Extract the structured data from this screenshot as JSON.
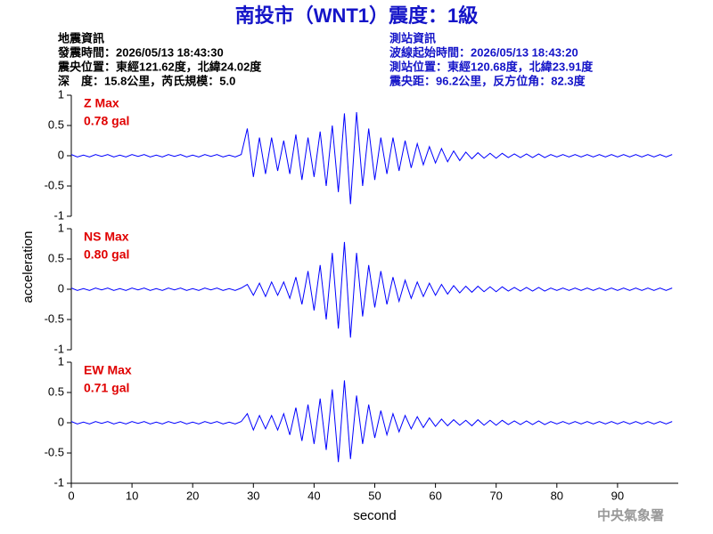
{
  "header": {
    "title": "南投市（WNT1）震度：1級",
    "left": [
      "地震資訊",
      "發震時間：2026/05/13 18:43:30",
      "震央位置：東經121.62度，北緯24.02度",
      "深　度：15.8公里，芮氏規模：5.0"
    ],
    "right": [
      "測站資訊",
      "波線起始時間：2026/05/13 18:43:20",
      "測站位置：東經120.68度，北緯23.91度",
      "震央距：96.2公里，反方位角：82.3度"
    ]
  },
  "footer": "中央氣象署",
  "chart_data": [
    {
      "type": "line",
      "annotations": [
        "Z Max",
        "0.78 gal"
      ],
      "xlim": [
        0,
        100
      ],
      "ylim": [
        -1,
        1
      ],
      "yticks": [
        1,
        0.5,
        0,
        -0.5,
        -1
      ],
      "series": [
        {
          "color": "#0000ff",
          "x": [
            0,
            1,
            2,
            3,
            4,
            5,
            6,
            7,
            8,
            9,
            10,
            11,
            12,
            13,
            14,
            15,
            16,
            17,
            18,
            19,
            20,
            21,
            22,
            23,
            24,
            25,
            26,
            27,
            28,
            29,
            30,
            31,
            32,
            33,
            34,
            35,
            36,
            37,
            38,
            39,
            40,
            41,
            42,
            43,
            44,
            45,
            46,
            47,
            48,
            49,
            50,
            51,
            52,
            53,
            54,
            55,
            56,
            57,
            58,
            59,
            60,
            61,
            62,
            63,
            64,
            65,
            66,
            67,
            68,
            69,
            70,
            71,
            72,
            73,
            74,
            75,
            76,
            77,
            78,
            79,
            80,
            81,
            82,
            83,
            84,
            85,
            86,
            87,
            88,
            89,
            90,
            91,
            92,
            93,
            94,
            95,
            96,
            97,
            98,
            99
          ],
          "values": [
            0.02,
            -0.02,
            0.01,
            -0.02,
            0.02,
            -0.01,
            0.02,
            -0.02,
            0.01,
            -0.02,
            0.02,
            -0.01,
            0.02,
            -0.02,
            0.01,
            -0.02,
            0.02,
            -0.01,
            0.02,
            -0.02,
            0.01,
            -0.02,
            0.02,
            -0.01,
            0.02,
            -0.02,
            0.01,
            -0.02,
            0.02,
            0.45,
            -0.35,
            0.3,
            -0.3,
            0.3,
            -0.25,
            0.25,
            -0.3,
            0.35,
            -0.4,
            0.3,
            -0.35,
            0.4,
            -0.5,
            0.5,
            -0.6,
            0.7,
            -0.8,
            0.72,
            -0.5,
            0.45,
            -0.4,
            0.3,
            -0.3,
            0.3,
            -0.25,
            0.25,
            -0.2,
            0.2,
            -0.15,
            0.15,
            -0.12,
            0.12,
            -0.1,
            0.08,
            -0.08,
            0.06,
            -0.05,
            0.05,
            -0.04,
            0.04,
            -0.04,
            0.04,
            -0.03,
            0.03,
            -0.03,
            0.03,
            -0.03,
            0.03,
            -0.03,
            0.02,
            -0.02,
            0.02,
            -0.02,
            0.02,
            -0.02,
            0.02,
            -0.02,
            0.02,
            -0.02,
            0.02,
            -0.02,
            0.02,
            -0.02,
            0.02,
            -0.02,
            0.02,
            -0.02,
            0.02,
            -0.02,
            0.02
          ]
        }
      ]
    },
    {
      "type": "line",
      "annotations": [
        "NS Max",
        "0.80 gal"
      ],
      "ylabel": "acceleration",
      "xlim": [
        0,
        100
      ],
      "ylim": [
        -1,
        1
      ],
      "yticks": [
        1,
        0.5,
        0,
        -0.5,
        -1
      ],
      "series": [
        {
          "color": "#0000ff",
          "x": [
            0,
            1,
            2,
            3,
            4,
            5,
            6,
            7,
            8,
            9,
            10,
            11,
            12,
            13,
            14,
            15,
            16,
            17,
            18,
            19,
            20,
            21,
            22,
            23,
            24,
            25,
            26,
            27,
            28,
            29,
            30,
            31,
            32,
            33,
            34,
            35,
            36,
            37,
            38,
            39,
            40,
            41,
            42,
            43,
            44,
            45,
            46,
            47,
            48,
            49,
            50,
            51,
            52,
            53,
            54,
            55,
            56,
            57,
            58,
            59,
            60,
            61,
            62,
            63,
            64,
            65,
            66,
            67,
            68,
            69,
            70,
            71,
            72,
            73,
            74,
            75,
            76,
            77,
            78,
            79,
            80,
            81,
            82,
            83,
            84,
            85,
            86,
            87,
            88,
            89,
            90,
            91,
            92,
            93,
            94,
            95,
            96,
            97,
            98,
            99
          ],
          "values": [
            0.02,
            -0.02,
            0.01,
            -0.02,
            0.02,
            -0.01,
            0.02,
            -0.02,
            0.01,
            -0.02,
            0.02,
            -0.01,
            0.02,
            -0.02,
            0.01,
            -0.02,
            0.02,
            -0.01,
            0.02,
            -0.02,
            0.01,
            -0.02,
            0.02,
            -0.01,
            0.02,
            -0.02,
            0.01,
            -0.02,
            0.02,
            0.08,
            -0.1,
            0.1,
            -0.12,
            0.12,
            -0.1,
            0.12,
            -0.15,
            0.2,
            -0.25,
            0.3,
            -0.35,
            0.4,
            -0.5,
            0.6,
            -0.65,
            0.78,
            -0.8,
            0.6,
            -0.45,
            0.4,
            -0.3,
            0.3,
            -0.25,
            0.2,
            -0.2,
            0.15,
            -0.15,
            0.12,
            -0.12,
            0.1,
            -0.1,
            0.08,
            -0.08,
            0.06,
            -0.06,
            0.05,
            -0.05,
            0.05,
            -0.04,
            0.04,
            -0.04,
            0.04,
            -0.03,
            0.03,
            -0.03,
            0.03,
            -0.03,
            0.03,
            -0.03,
            0.02,
            -0.02,
            0.02,
            -0.02,
            0.02,
            -0.02,
            0.02,
            -0.02,
            0.02,
            -0.02,
            0.02,
            -0.02,
            0.02,
            -0.02,
            0.02,
            -0.02,
            0.02,
            -0.02,
            0.02,
            -0.02,
            0.02
          ]
        }
      ]
    },
    {
      "type": "line",
      "annotations": [
        "EW Max",
        "0.71 gal"
      ],
      "xlabel": "second",
      "xlim": [
        0,
        100
      ],
      "xticks": [
        0,
        10,
        20,
        30,
        40,
        50,
        60,
        70,
        80,
        90
      ],
      "ylim": [
        -1,
        1
      ],
      "yticks": [
        1,
        0.5,
        0,
        -0.5,
        -1
      ],
      "series": [
        {
          "color": "#0000ff",
          "x": [
            0,
            1,
            2,
            3,
            4,
            5,
            6,
            7,
            8,
            9,
            10,
            11,
            12,
            13,
            14,
            15,
            16,
            17,
            18,
            19,
            20,
            21,
            22,
            23,
            24,
            25,
            26,
            27,
            28,
            29,
            30,
            31,
            32,
            33,
            34,
            35,
            36,
            37,
            38,
            39,
            40,
            41,
            42,
            43,
            44,
            45,
            46,
            47,
            48,
            49,
            50,
            51,
            52,
            53,
            54,
            55,
            56,
            57,
            58,
            59,
            60,
            61,
            62,
            63,
            64,
            65,
            66,
            67,
            68,
            69,
            70,
            71,
            72,
            73,
            74,
            75,
            76,
            77,
            78,
            79,
            80,
            81,
            82,
            83,
            84,
            85,
            86,
            87,
            88,
            89,
            90,
            91,
            92,
            93,
            94,
            95,
            96,
            97,
            98,
            99
          ],
          "values": [
            0.02,
            -0.02,
            0.01,
            -0.02,
            0.02,
            -0.01,
            0.02,
            -0.02,
            0.01,
            -0.02,
            0.02,
            -0.01,
            0.02,
            -0.02,
            0.01,
            -0.02,
            0.02,
            -0.01,
            0.02,
            -0.02,
            0.01,
            -0.02,
            0.02,
            -0.01,
            0.02,
            -0.02,
            0.01,
            -0.02,
            0.02,
            0.15,
            -0.12,
            0.12,
            -0.1,
            0.12,
            -0.12,
            0.15,
            -0.2,
            0.25,
            -0.3,
            0.3,
            -0.35,
            0.4,
            -0.45,
            0.55,
            -0.65,
            0.7,
            -0.6,
            0.45,
            -0.35,
            0.3,
            -0.25,
            0.2,
            -0.2,
            0.15,
            -0.15,
            0.12,
            -0.1,
            0.1,
            -0.08,
            0.08,
            -0.06,
            0.06,
            -0.05,
            0.05,
            -0.04,
            0.04,
            -0.05,
            0.05,
            -0.04,
            0.04,
            -0.04,
            0.04,
            -0.03,
            0.03,
            -0.03,
            0.03,
            -0.03,
            0.03,
            -0.03,
            0.02,
            -0.02,
            0.02,
            -0.02,
            0.02,
            -0.02,
            0.02,
            -0.02,
            0.02,
            -0.02,
            0.02,
            -0.02,
            0.02,
            -0.02,
            0.02,
            -0.02,
            0.02,
            -0.02,
            0.02,
            -0.02,
            0.02
          ]
        }
      ]
    }
  ]
}
